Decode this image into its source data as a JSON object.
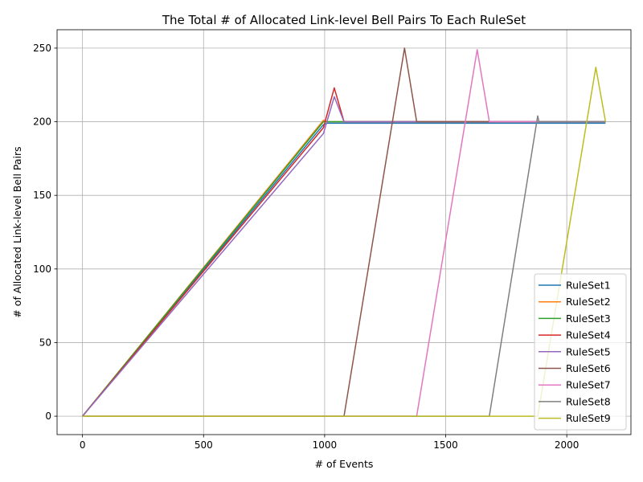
{
  "chart_data": {
    "type": "line",
    "title": "The Total # of Allocated Link-level Bell Pairs To Each RuleSet",
    "xlabel": "# of Events",
    "ylabel": "# of Allocated Link-level Bell Pairs",
    "xlim": [
      -105,
      2265
    ],
    "ylim": [
      -12.5,
      262.5
    ],
    "xticks": [
      0,
      500,
      1000,
      1500,
      2000
    ],
    "yticks": [
      0,
      50,
      100,
      150,
      200,
      250
    ],
    "grid": true,
    "legend_position": "lower right",
    "series": [
      {
        "name": "RuleSet1",
        "color": "#1f77b4",
        "x": [
          0,
          995,
          1010,
          2160
        ],
        "y": [
          0,
          198,
          199,
          199
        ]
      },
      {
        "name": "RuleSet2",
        "color": "#ff7f0e",
        "x": [
          0,
          995,
          1010,
          2160
        ],
        "y": [
          0,
          201,
          200,
          200
        ]
      },
      {
        "name": "RuleSet3",
        "color": "#2ca02c",
        "x": [
          0,
          995,
          1010,
          2160
        ],
        "y": [
          0,
          200,
          200,
          200
        ]
      },
      {
        "name": "RuleSet4",
        "color": "#d62728",
        "x": [
          0,
          995,
          1040,
          1080,
          2160
        ],
        "y": [
          0,
          196,
          223,
          200,
          200
        ]
      },
      {
        "name": "RuleSet5",
        "color": "#9467bd",
        "x": [
          0,
          995,
          1040,
          1080,
          2160
        ],
        "y": [
          0,
          192,
          217,
          200,
          200
        ]
      },
      {
        "name": "RuleSet6",
        "color": "#8c564b",
        "x": [
          0,
          1080,
          1330,
          1380,
          2160
        ],
        "y": [
          0,
          0,
          250,
          200,
          200
        ]
      },
      {
        "name": "RuleSet7",
        "color": "#e377c2",
        "x": [
          0,
          1380,
          1630,
          1680,
          2160
        ],
        "y": [
          0,
          0,
          249,
          200,
          200
        ]
      },
      {
        "name": "RuleSet8",
        "color": "#7f7f7f",
        "x": [
          0,
          1680,
          1880,
          1885,
          2160
        ],
        "y": [
          0,
          0,
          204,
          200,
          200
        ]
      },
      {
        "name": "RuleSet9",
        "color": "#bcbd22",
        "x": [
          0,
          1880,
          2120,
          2160
        ],
        "y": [
          0,
          0,
          237,
          200
        ]
      }
    ]
  }
}
